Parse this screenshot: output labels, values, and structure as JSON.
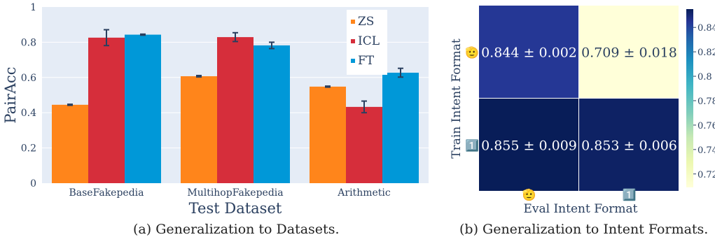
{
  "chart_data": [
    {
      "type": "bar",
      "xlabel": "Test Dataset",
      "ylabel": "PairAcc",
      "ylim": [
        0,
        1
      ],
      "yticks": [
        "0",
        "0.2",
        "0.4",
        "0.6",
        "0.8",
        "1"
      ],
      "grid": true,
      "legend_position": "top-right",
      "categories": [
        "BaseFakepedia",
        "MultihopFakepedia",
        "Arithmetic"
      ],
      "series": [
        {
          "name": "ZS",
          "color": "#ff851b",
          "values": [
            0.445,
            0.607,
            0.548
          ],
          "errors": [
            0.003,
            0.004,
            0.003
          ]
        },
        {
          "name": "ICL",
          "color": "#d62e3b",
          "values": [
            0.826,
            0.829,
            0.433
          ],
          "errors": [
            0.045,
            0.025,
            0.033
          ]
        },
        {
          "name": "FT",
          "color": "#0098d8",
          "values": [
            0.843,
            0.782,
            0.627
          ],
          "errors": [
            0.003,
            0.018,
            0.025
          ]
        }
      ],
      "caption": "(a) Generalization to Datasets."
    },
    {
      "type": "heatmap",
      "xlabel": "Eval Intent Format",
      "ylabel": "Train Intent Format",
      "row_icons": [
        "🫡",
        "1️⃣"
      ],
      "col_icons": [
        "🫡",
        "1️⃣"
      ],
      "values": [
        [
          0.844,
          0.709
        ],
        [
          0.855,
          0.853
        ]
      ],
      "cell_labels": [
        [
          "0.844 ± 0.002",
          "0.709 ± 0.018"
        ],
        [
          "0.855 ± 0.009",
          "0.853 ± 0.006"
        ]
      ],
      "colorbar_ticks": [
        "0.72",
        "0.74",
        "0.76",
        "0.78",
        "0.8",
        "0.82",
        "0.84"
      ],
      "colorbar_range": [
        0.709,
        0.855
      ],
      "caption": "(b) Generalization to Intent Formats."
    }
  ]
}
